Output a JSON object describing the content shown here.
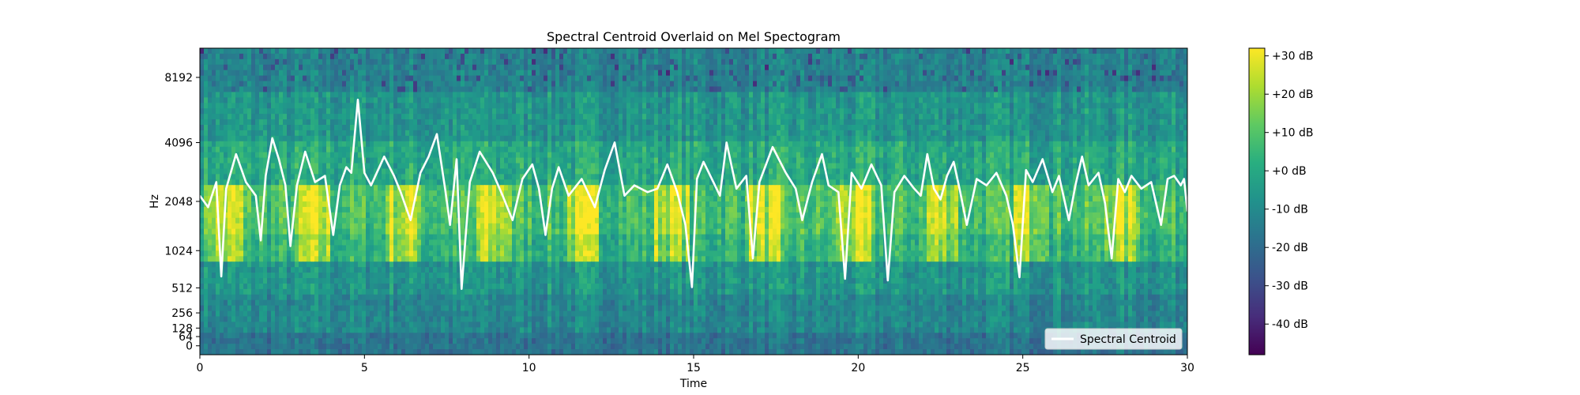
{
  "chart_data": {
    "type": "heatmap",
    "title": "Spectral Centroid Overlaid on Mel Spectogram",
    "xlabel": "Time",
    "ylabel": "Hz",
    "xlim": [
      0,
      30
    ],
    "x_ticks": [
      0,
      5,
      10,
      15,
      20,
      25,
      30
    ],
    "y_scale": "mel",
    "y_ticks": [
      0,
      64,
      128,
      256,
      512,
      1024,
      2048,
      4096,
      8192
    ],
    "colormap": "viridis",
    "colorbar": {
      "range_db": [
        -48,
        32
      ],
      "ticks": [
        30,
        20,
        10,
        0,
        -10,
        -20,
        -30,
        -40
      ],
      "tick_labels": [
        "+30 dB",
        "+20 dB",
        "+10 dB",
        "+0 dB",
        "-10 dB",
        "-20 dB",
        "-30 dB",
        "-40 dB"
      ]
    },
    "legend": {
      "position": "lower-right",
      "entries": [
        "Spectral Centroid"
      ]
    },
    "series": [
      {
        "name": "Spectral Centroid",
        "color": "#ffffff",
        "x": [
          0,
          0.25,
          0.5,
          0.65,
          0.8,
          1.1,
          1.4,
          1.7,
          1.85,
          2.0,
          2.2,
          2.4,
          2.6,
          2.75,
          2.95,
          3.2,
          3.5,
          3.8,
          4.05,
          4.25,
          4.45,
          4.6,
          4.8,
          5.0,
          5.2,
          5.6,
          5.9,
          6.1,
          6.4,
          6.7,
          6.95,
          7.2,
          7.45,
          7.6,
          7.8,
          7.95,
          8.2,
          8.5,
          8.9,
          9.2,
          9.5,
          9.8,
          10.1,
          10.3,
          10.5,
          10.7,
          10.9,
          11.2,
          11.6,
          12.0,
          12.3,
          12.6,
          12.9,
          13.2,
          13.6,
          13.9,
          14.2,
          14.5,
          14.75,
          14.95,
          15.1,
          15.3,
          15.6,
          15.8,
          16.0,
          16.3,
          16.6,
          16.8,
          17.0,
          17.4,
          17.8,
          18.1,
          18.3,
          18.6,
          18.9,
          19.1,
          19.4,
          19.6,
          19.8,
          20.1,
          20.4,
          20.7,
          20.9,
          21.1,
          21.4,
          21.7,
          21.9,
          22.1,
          22.3,
          22.5,
          22.7,
          22.9,
          23.1,
          23.3,
          23.6,
          23.9,
          24.2,
          24.5,
          24.7,
          24.9,
          25.1,
          25.3,
          25.6,
          25.9,
          26.1,
          26.4,
          26.6,
          26.8,
          27.0,
          27.3,
          27.5,
          27.7,
          27.9,
          28.1,
          28.3,
          28.6,
          28.9,
          29.2,
          29.4,
          29.6,
          29.8,
          29.9,
          30.0
        ],
        "y": [
          2200,
          1900,
          2600,
          650,
          2400,
          3600,
          2600,
          2200,
          1200,
          2800,
          4300,
          3400,
          2500,
          1100,
          2500,
          3700,
          2600,
          2800,
          1300,
          2500,
          3100,
          2900,
          6500,
          2900,
          2500,
          3500,
          2800,
          2300,
          1600,
          2900,
          3500,
          4500,
          2400,
          1500,
          3400,
          500,
          2600,
          3700,
          2900,
          2200,
          1600,
          2700,
          3200,
          2400,
          1300,
          2400,
          3100,
          2200,
          2700,
          1900,
          3000,
          4100,
          2200,
          2500,
          2300,
          2400,
          3200,
          2300,
          1500,
          520,
          2700,
          3300,
          2600,
          2200,
          4100,
          2400,
          2800,
          900,
          2600,
          3900,
          2900,
          2400,
          1600,
          2600,
          3600,
          2500,
          2300,
          620,
          2900,
          2400,
          3200,
          2500,
          600,
          2300,
          2800,
          2400,
          2200,
          3600,
          2400,
          2100,
          2800,
          3300,
          2300,
          1500,
          2700,
          2500,
          2900,
          2200,
          1500,
          640,
          3000,
          2600,
          3400,
          2300,
          2800,
          1600,
          2500,
          3500,
          2500,
          2900,
          2000,
          900,
          2700,
          2300,
          2800,
          2400,
          2600,
          1500,
          2700,
          2800,
          2500,
          2700,
          1800
        ]
      }
    ]
  }
}
